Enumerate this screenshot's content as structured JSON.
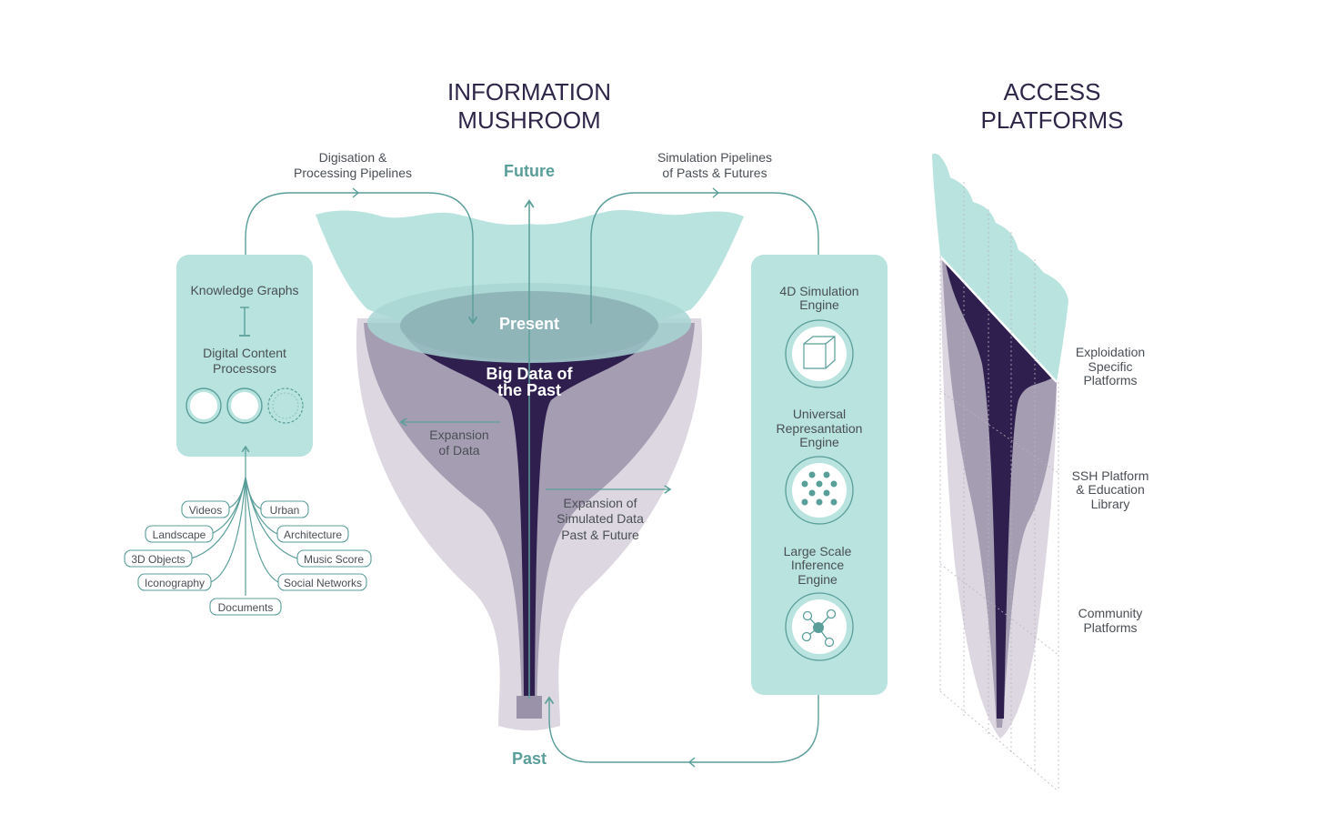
{
  "titles": {
    "mushroom_line1": "INFORMATION",
    "mushroom_line2": "MUSHROOM",
    "access_line1": "ACCESS",
    "access_line2": "PLATFORMS"
  },
  "axis": {
    "future": "Future",
    "past": "Past",
    "present": "Present"
  },
  "funnel": {
    "big_data_line1": "Big Data of",
    "big_data_line2": "the Past",
    "expansion_line1": "Expansion",
    "expansion_line2": "of Data",
    "sim_line1": "Expansion of",
    "sim_line2": "Simulated Data",
    "sim_line3": "Past & Future"
  },
  "pipelines": {
    "left_line1": "Digisation &",
    "left_line2": "Processing Pipelines",
    "right_line1": "Simulation Pipelines",
    "right_line2": "of Pasts & Futures"
  },
  "left_panel": {
    "knowledge_graphs": "Knowledge Graphs",
    "processors_line1": "Digital Content",
    "processors_line2": "Processors"
  },
  "sources": {
    "videos": "Videos",
    "urban": "Urban",
    "landscape": "Landscape",
    "architecture": "Architecture",
    "objects_3d": "3D Objects",
    "music_score": "Music Score",
    "iconography": "Iconography",
    "social_networks": "Social Networks",
    "documents": "Documents"
  },
  "engines": {
    "sim_line1": "4D Simulation",
    "sim_line2": "Engine",
    "urep_line1": "Universal",
    "urep_line2": "Represantation",
    "urep_line3": "Engine",
    "inf_line1": "Large Scale",
    "inf_line2": "Inference",
    "inf_line3": "Engine"
  },
  "platforms": {
    "exp_line1": "Exploidation",
    "exp_line2": "Specific",
    "exp_line3": "Platforms",
    "ssh_line1": "SSH Platform",
    "ssh_line2": "& Education",
    "ssh_line3": "Library",
    "com_line1": "Community",
    "com_line2": "Platforms"
  },
  "colors": {
    "teal_light": "#b8e3df",
    "teal_stroke": "#5a9e9a",
    "purple_dark": "#2e1f4e",
    "purple_mid": "#a59db2",
    "purple_light": "#dcd7e1",
    "present_ellipse": "#8fb5b9"
  }
}
